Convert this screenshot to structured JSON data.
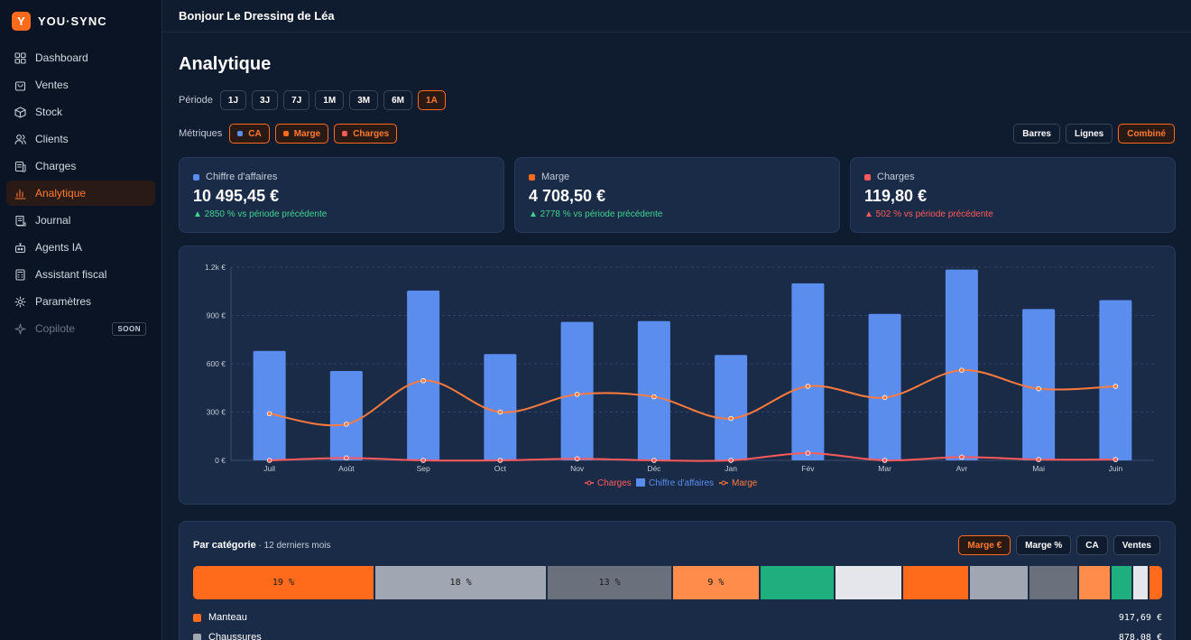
{
  "brand": {
    "logo_letter": "Y",
    "name": "YOU·SYNC"
  },
  "header": {
    "greeting": "Bonjour Le Dressing de Léa"
  },
  "nav": [
    {
      "label": "Dashboard",
      "icon": "grid-icon"
    },
    {
      "label": "Ventes",
      "icon": "bag-icon"
    },
    {
      "label": "Stock",
      "icon": "box-icon"
    },
    {
      "label": "Clients",
      "icon": "users-icon"
    },
    {
      "label": "Charges",
      "icon": "receipt-icon"
    },
    {
      "label": "Analytique",
      "icon": "bar-chart-icon",
      "active": true
    },
    {
      "label": "Journal",
      "icon": "journal-icon"
    },
    {
      "label": "Agents IA",
      "icon": "robot-icon"
    },
    {
      "label": "Assistant fiscal",
      "icon": "calculator-icon"
    },
    {
      "label": "Paramètres",
      "icon": "gear-icon"
    },
    {
      "label": "Copilote",
      "icon": "sparkle-icon",
      "badge": "SOON",
      "disabled": true
    }
  ],
  "page": {
    "title": "Analytique"
  },
  "period": {
    "label": "Période",
    "options": [
      "1J",
      "3J",
      "7J",
      "1M",
      "3M",
      "6M",
      "1A"
    ],
    "selected": "1A"
  },
  "metrics": {
    "label": "Métriques",
    "options": [
      {
        "label": "CA",
        "color": "#5b8def"
      },
      {
        "label": "Marge",
        "color": "#ff6b1a"
      },
      {
        "label": "Charges",
        "color": "#ff5a5a"
      }
    ]
  },
  "view": {
    "options": [
      "Barres",
      "Lignes",
      "Combiné"
    ],
    "selected": "Combiné"
  },
  "kpis": [
    {
      "label": "Chiffre d'affaires",
      "value": "10 495,45 €",
      "change": "▲ 2850 % vs période précédente",
      "trend": "up",
      "color": "#5b8def"
    },
    {
      "label": "Marge",
      "value": "4 708,50 €",
      "change": "▲ 2778 % vs période précédente",
      "trend": "up",
      "color": "#ff6b1a"
    },
    {
      "label": "Charges",
      "value": "119,80 €",
      "change": "▲ 502 % vs période précédente",
      "trend": "down",
      "color": "#ff5a5a"
    }
  ],
  "chart_data": {
    "type": "bar",
    "categories": [
      "Juil",
      "Août",
      "Sep",
      "Oct",
      "Nov",
      "Déc",
      "Jan",
      "Fév",
      "Mar",
      "Avr",
      "Mai",
      "Juin"
    ],
    "series": [
      {
        "name": "Chiffre d'affaires",
        "kind": "bar",
        "color": "#5b8def",
        "values": [
          680,
          555,
          1055,
          660,
          860,
          865,
          655,
          1100,
          910,
          1185,
          940,
          995
        ]
      },
      {
        "name": "Marge",
        "kind": "line",
        "color": "#ff7a3d",
        "values": [
          290,
          225,
          495,
          300,
          410,
          395,
          260,
          460,
          390,
          560,
          445,
          460
        ]
      },
      {
        "name": "Charges",
        "kind": "line",
        "color": "#ff5a5a",
        "values": [
          0,
          15,
          0,
          0,
          10,
          0,
          0,
          45,
          0,
          20,
          5,
          5
        ]
      }
    ],
    "yticks": [
      "0 €",
      "300 €",
      "600 €",
      "900 €",
      "1.2k €"
    ],
    "ylim": [
      0,
      1200
    ],
    "legend": [
      "Charges",
      "Chiffre d'affaires",
      "Marge"
    ],
    "legend_position": "bottom",
    "grid": true
  },
  "categories_panel": {
    "title": "Par catégorie",
    "subtitle": " · 12 derniers mois",
    "toggle": [
      "Marge €",
      "Marge %",
      "CA",
      "Ventes"
    ],
    "selected": "Marge €",
    "segments": [
      {
        "share": 19,
        "label": "19 %",
        "color": "#ff6b1a"
      },
      {
        "share": 18,
        "label": "18 %",
        "color": "#a0a6b2"
      },
      {
        "share": 13,
        "label": "13 %",
        "color": "#6a717d"
      },
      {
        "share": 9,
        "label": "9 %",
        "color": "#ff8c4a"
      },
      {
        "share": 7.7,
        "label": "",
        "color": "#1fae7e"
      },
      {
        "share": 7,
        "label": "",
        "color": "#e4e6ec"
      },
      {
        "share": 6.8,
        "label": "",
        "color": "#ff6b1a"
      },
      {
        "share": 6.1,
        "label": "",
        "color": "#a0a6b2"
      },
      {
        "share": 5,
        "label": "",
        "color": "#6a717d"
      },
      {
        "share": 3.3,
        "label": "",
        "color": "#ff8c4a"
      },
      {
        "share": 2,
        "label": "",
        "color": "#1fae7e"
      },
      {
        "share": 1.6,
        "label": "",
        "color": "#e4e6ec"
      },
      {
        "share": 1.3,
        "label": "",
        "color": "#ff6b1a"
      }
    ],
    "rows": [
      {
        "name": "Manteau",
        "amount": "917,69 €",
        "color": "#ff6b1a"
      },
      {
        "name": "Chaussures",
        "amount": "878,08 €",
        "color": "#a0a6b2"
      }
    ]
  }
}
